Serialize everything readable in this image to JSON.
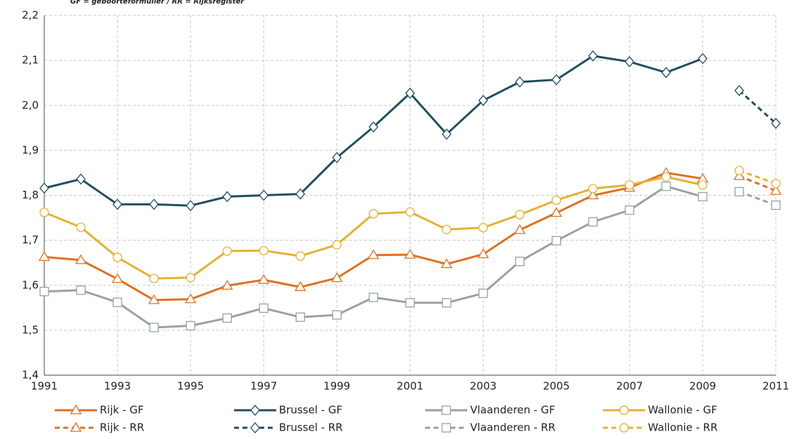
{
  "chart_data": {
    "type": "line",
    "subtitle": "GF = geboorteformulier / RR = Rijksregister",
    "xlim": [
      1991,
      2011
    ],
    "xticks": [
      1991,
      1993,
      1995,
      1997,
      1999,
      2001,
      2003,
      2005,
      2007,
      2009,
      2011
    ],
    "ylim": [
      1.4,
      2.2
    ],
    "yticks": [
      {
        "value": 1.4,
        "label": "1,4"
      },
      {
        "value": 1.5,
        "label": "1,5"
      },
      {
        "value": 1.6,
        "label": "1,6"
      },
      {
        "value": 1.7,
        "label": "1,7"
      },
      {
        "value": 1.8,
        "label": "1,8"
      },
      {
        "value": 1.9,
        "label": "1,9"
      },
      {
        "value": 2.0,
        "label": "2,0"
      },
      {
        "value": 2.1,
        "label": "2,1"
      },
      {
        "value": 2.2,
        "label": "2,2"
      }
    ],
    "grid": true,
    "legend": "bottom",
    "series": [
      {
        "name": "Rijk - GF",
        "color": "#e07020",
        "marker": "triangle",
        "dashed": false,
        "x": [
          1991,
          1992,
          1993,
          1994,
          1995,
          1996,
          1997,
          1998,
          1999,
          2000,
          2001,
          2002,
          2003,
          2004,
          2005,
          2006,
          2007,
          2008,
          2009
        ],
        "values": [
          1.663,
          1.656,
          1.614,
          1.567,
          1.569,
          1.599,
          1.612,
          1.596,
          1.616,
          1.667,
          1.668,
          1.647,
          1.669,
          1.723,
          1.761,
          1.8,
          1.817,
          1.85,
          1.837
        ]
      },
      {
        "name": "Brussel - GF",
        "color": "#1f4e5f",
        "marker": "diamond",
        "dashed": false,
        "x": [
          1991,
          1992,
          1993,
          1994,
          1995,
          1996,
          1997,
          1998,
          1999,
          2000,
          2001,
          2002,
          2003,
          2004,
          2005,
          2006,
          2007,
          2008,
          2009
        ],
        "values": [
          1.816,
          1.836,
          1.78,
          1.78,
          1.777,
          1.797,
          1.8,
          1.803,
          1.884,
          1.952,
          2.027,
          1.936,
          2.011,
          2.052,
          2.057,
          2.11,
          2.097,
          2.073,
          2.104
        ]
      },
      {
        "name": "Vlaanderen - GF",
        "color": "#98a0a8",
        "marker": "square",
        "dashed": false,
        "x": [
          1991,
          1992,
          1993,
          1994,
          1995,
          1996,
          1997,
          1998,
          1999,
          2000,
          2001,
          2002,
          2003,
          2004,
          2005,
          2006,
          2007,
          2008,
          2009
        ],
        "values": [
          1.586,
          1.589,
          1.562,
          1.506,
          1.51,
          1.527,
          1.549,
          1.529,
          1.534,
          1.573,
          1.561,
          1.561,
          1.582,
          1.653,
          1.699,
          1.741,
          1.767,
          1.82,
          1.797
        ]
      },
      {
        "name": "Wallonie - GF",
        "color": "#e8b030",
        "marker": "circle",
        "dashed": false,
        "x": [
          1991,
          1992,
          1993,
          1994,
          1995,
          1996,
          1997,
          1998,
          1999,
          2000,
          2001,
          2002,
          2003,
          2004,
          2005,
          2006,
          2007,
          2008,
          2009
        ],
        "values": [
          1.762,
          1.729,
          1.662,
          1.615,
          1.617,
          1.676,
          1.677,
          1.665,
          1.69,
          1.759,
          1.763,
          1.724,
          1.728,
          1.757,
          1.789,
          1.815,
          1.823,
          1.841,
          1.823
        ]
      },
      {
        "name": "Rijk - RR",
        "color": "#e07020",
        "marker": "triangle",
        "dashed": true,
        "x": [
          2010,
          2011
        ],
        "values": [
          1.843,
          1.81
        ]
      },
      {
        "name": "Brussel - RR",
        "color": "#1f4e5f",
        "marker": "diamond",
        "dashed": true,
        "x": [
          2010,
          2011
        ],
        "values": [
          2.033,
          1.96
        ]
      },
      {
        "name": "Vlaanderen - RR",
        "color": "#98a0a8",
        "marker": "square",
        "dashed": true,
        "x": [
          2010,
          2011
        ],
        "values": [
          1.808,
          1.778
        ]
      },
      {
        "name": "Wallonie - RR",
        "color": "#e8b030",
        "marker": "circle",
        "dashed": true,
        "x": [
          2010,
          2011
        ],
        "values": [
          1.855,
          1.826
        ]
      }
    ]
  }
}
